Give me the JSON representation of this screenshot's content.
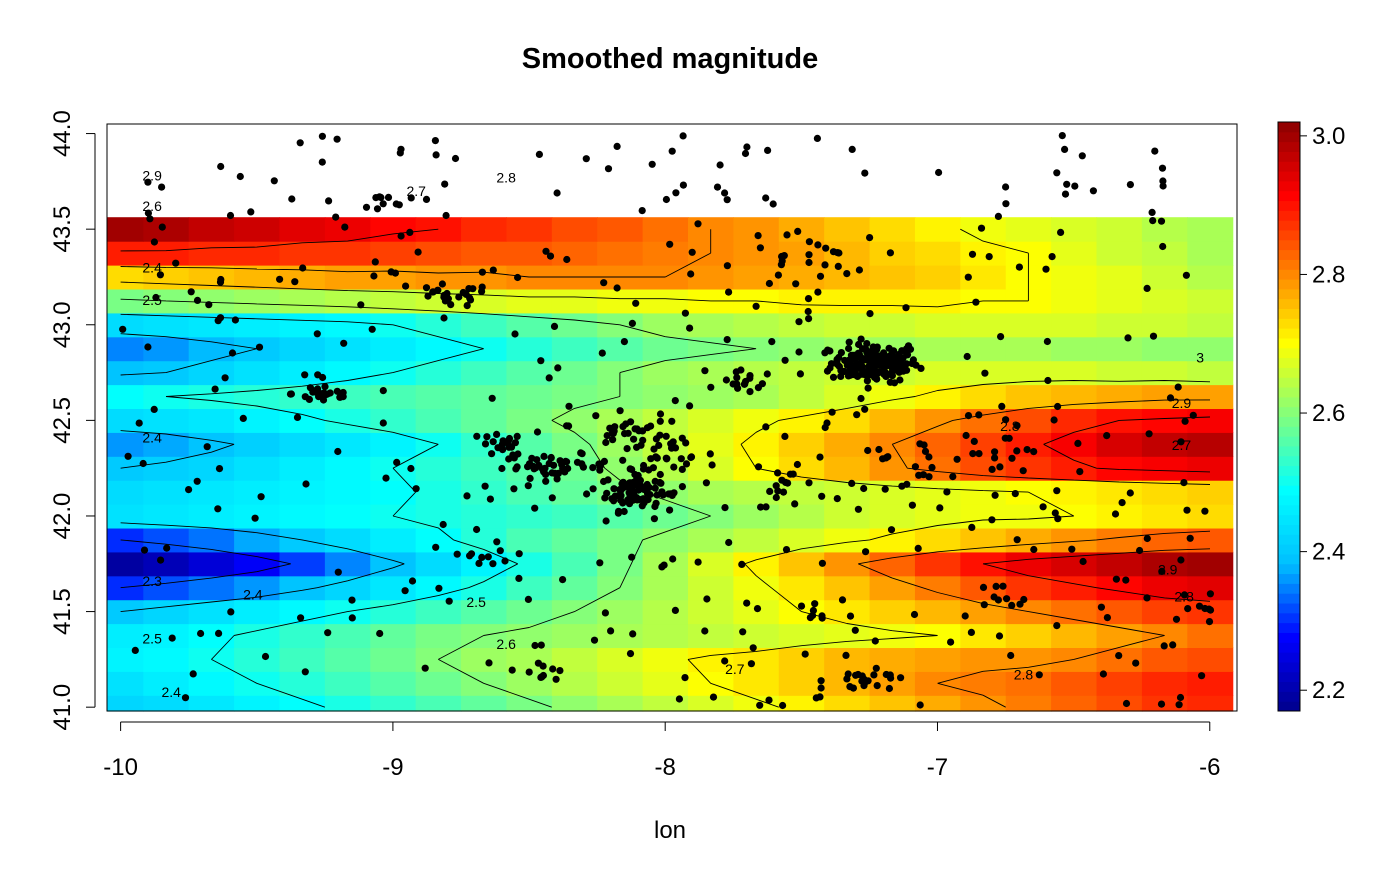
{
  "chart_data": {
    "type": "heatmap",
    "title": "Smoothed magnitude",
    "xlabel": "lon",
    "ylabel": "",
    "xlim": [
      -10.05,
      -5.9
    ],
    "ylim": [
      40.98,
      44.05
    ],
    "x_ticks": [
      "-10",
      "-9",
      "-8",
      "-7",
      "-6"
    ],
    "y_ticks": [
      "41.0",
      "41.5",
      "42.0",
      "42.5",
      "43.0",
      "43.5",
      "44.0"
    ],
    "colorbar": {
      "range": [
        2.17,
        3.02
      ],
      "ticks": [
        "2.2",
        "2.4",
        "2.6",
        "2.8",
        "3.0"
      ],
      "palette": [
        "#00008B",
        "#0000FF",
        "#00BFFF",
        "#00FFFF",
        "#7FFF7F",
        "#FFFF00",
        "#FF7F00",
        "#FF0000",
        "#8B0000"
      ]
    },
    "grid": {
      "x_start": -10.0,
      "x_step": 0.1667,
      "y_start": 41.0,
      "y_step": 0.125,
      "values": [
        [
          2.42,
          2.43,
          2.45,
          2.47,
          2.49,
          2.51,
          2.53,
          2.55,
          2.57,
          2.59,
          2.61,
          2.63,
          2.65,
          2.67,
          2.69,
          2.71,
          2.73,
          2.75,
          2.77,
          2.79,
          2.81,
          2.83,
          2.85,
          2.87,
          2.88
        ],
        [
          2.44,
          2.46,
          2.48,
          2.5,
          2.52,
          2.54,
          2.56,
          2.58,
          2.6,
          2.62,
          2.64,
          2.66,
          2.68,
          2.7,
          2.72,
          2.74,
          2.76,
          2.78,
          2.8,
          2.81,
          2.82,
          2.84,
          2.86,
          2.88,
          2.89
        ],
        [
          2.47,
          2.48,
          2.5,
          2.52,
          2.54,
          2.56,
          2.58,
          2.6,
          2.62,
          2.63,
          2.65,
          2.67,
          2.69,
          2.71,
          2.72,
          2.74,
          2.76,
          2.77,
          2.78,
          2.79,
          2.79,
          2.8,
          2.82,
          2.84,
          2.85
        ],
        [
          2.46,
          2.47,
          2.49,
          2.51,
          2.53,
          2.55,
          2.57,
          2.59,
          2.6,
          2.61,
          2.62,
          2.63,
          2.64,
          2.65,
          2.66,
          2.67,
          2.68,
          2.69,
          2.7,
          2.72,
          2.74,
          2.76,
          2.78,
          2.8,
          2.82
        ],
        [
          2.4,
          2.42,
          2.44,
          2.46,
          2.48,
          2.5,
          2.52,
          2.54,
          2.56,
          2.58,
          2.6,
          2.62,
          2.64,
          2.66,
          2.68,
          2.7,
          2.72,
          2.74,
          2.76,
          2.78,
          2.8,
          2.82,
          2.84,
          2.86,
          2.87
        ],
        [
          2.3,
          2.32,
          2.34,
          2.36,
          2.39,
          2.42,
          2.45,
          2.48,
          2.51,
          2.54,
          2.57,
          2.6,
          2.63,
          2.66,
          2.69,
          2.72,
          2.75,
          2.78,
          2.81,
          2.84,
          2.87,
          2.89,
          2.91,
          2.93,
          2.94
        ],
        [
          2.19,
          2.21,
          2.24,
          2.27,
          2.31,
          2.35,
          2.39,
          2.43,
          2.47,
          2.51,
          2.55,
          2.59,
          2.63,
          2.67,
          2.71,
          2.75,
          2.79,
          2.83,
          2.87,
          2.9,
          2.93,
          2.95,
          2.97,
          2.99,
          3.0
        ],
        [
          2.3,
          2.32,
          2.34,
          2.37,
          2.4,
          2.43,
          2.46,
          2.49,
          2.52,
          2.55,
          2.57,
          2.59,
          2.61,
          2.63,
          2.65,
          2.67,
          2.69,
          2.71,
          2.73,
          2.75,
          2.77,
          2.79,
          2.81,
          2.83,
          2.84
        ],
        [
          2.44,
          2.45,
          2.46,
          2.47,
          2.48,
          2.49,
          2.5,
          2.51,
          2.52,
          2.53,
          2.54,
          2.56,
          2.58,
          2.6,
          2.62,
          2.64,
          2.66,
          2.67,
          2.68,
          2.69,
          2.69,
          2.7,
          2.71,
          2.72,
          2.73
        ],
        [
          2.43,
          2.44,
          2.45,
          2.46,
          2.47,
          2.48,
          2.49,
          2.51,
          2.53,
          2.55,
          2.57,
          2.59,
          2.61,
          2.63,
          2.64,
          2.65,
          2.66,
          2.67,
          2.68,
          2.69,
          2.7,
          2.71,
          2.72,
          2.73,
          2.74
        ],
        [
          2.4,
          2.41,
          2.42,
          2.44,
          2.46,
          2.48,
          2.5,
          2.52,
          2.54,
          2.56,
          2.58,
          2.61,
          2.64,
          2.67,
          2.7,
          2.73,
          2.76,
          2.79,
          2.82,
          2.85,
          2.87,
          2.89,
          2.91,
          2.92,
          2.93
        ],
        [
          2.36,
          2.37,
          2.39,
          2.41,
          2.43,
          2.45,
          2.47,
          2.5,
          2.53,
          2.56,
          2.59,
          2.62,
          2.65,
          2.68,
          2.71,
          2.74,
          2.77,
          2.8,
          2.83,
          2.86,
          2.89,
          2.92,
          2.95,
          2.97,
          2.98
        ],
        [
          2.43,
          2.44,
          2.45,
          2.47,
          2.49,
          2.51,
          2.53,
          2.55,
          2.57,
          2.59,
          2.61,
          2.63,
          2.65,
          2.67,
          2.69,
          2.71,
          2.73,
          2.76,
          2.79,
          2.82,
          2.85,
          2.88,
          2.9,
          2.91,
          2.92
        ],
        [
          2.49,
          2.5,
          2.51,
          2.52,
          2.53,
          2.54,
          2.55,
          2.56,
          2.57,
          2.58,
          2.59,
          2.6,
          2.61,
          2.62,
          2.63,
          2.65,
          2.67,
          2.69,
          2.71,
          2.73,
          2.75,
          2.76,
          2.77,
          2.78,
          2.78
        ],
        [
          2.39,
          2.4,
          2.42,
          2.44,
          2.46,
          2.48,
          2.5,
          2.52,
          2.54,
          2.56,
          2.58,
          2.6,
          2.62,
          2.63,
          2.64,
          2.65,
          2.66,
          2.66,
          2.67,
          2.67,
          2.67,
          2.67,
          2.66,
          2.66,
          2.65
        ],
        [
          2.35,
          2.36,
          2.38,
          2.4,
          2.42,
          2.44,
          2.46,
          2.48,
          2.5,
          2.52,
          2.54,
          2.56,
          2.58,
          2.59,
          2.6,
          2.61,
          2.62,
          2.62,
          2.63,
          2.63,
          2.63,
          2.62,
          2.62,
          2.61,
          2.61
        ],
        [
          2.43,
          2.44,
          2.45,
          2.46,
          2.47,
          2.48,
          2.5,
          2.52,
          2.54,
          2.56,
          2.58,
          2.6,
          2.62,
          2.63,
          2.64,
          2.65,
          2.66,
          2.66,
          2.67,
          2.67,
          2.67,
          2.67,
          2.66,
          2.66,
          2.65
        ],
        [
          2.59,
          2.6,
          2.61,
          2.62,
          2.63,
          2.64,
          2.65,
          2.66,
          2.67,
          2.68,
          2.68,
          2.69,
          2.69,
          2.7,
          2.7,
          2.71,
          2.71,
          2.71,
          2.71,
          2.7,
          2.7,
          2.69,
          2.68,
          2.67,
          2.66
        ],
        [
          2.73,
          2.74,
          2.75,
          2.76,
          2.77,
          2.78,
          2.78,
          2.79,
          2.79,
          2.8,
          2.8,
          2.8,
          2.8,
          2.79,
          2.78,
          2.77,
          2.76,
          2.75,
          2.74,
          2.72,
          2.7,
          2.69,
          2.68,
          2.66,
          2.64
        ],
        [
          2.89,
          2.89,
          2.88,
          2.88,
          2.87,
          2.87,
          2.86,
          2.85,
          2.84,
          2.84,
          2.83,
          2.82,
          2.81,
          2.8,
          2.79,
          2.78,
          2.76,
          2.74,
          2.73,
          2.71,
          2.7,
          2.68,
          2.66,
          2.65,
          2.63
        ],
        [
          3.0,
          2.99,
          2.97,
          2.96,
          2.94,
          2.93,
          2.91,
          2.9,
          2.88,
          2.87,
          2.85,
          2.84,
          2.82,
          2.8,
          2.79,
          2.77,
          2.75,
          2.73,
          2.71,
          2.69,
          2.68,
          2.67,
          2.66,
          2.64,
          2.63
        ]
      ]
    },
    "contour_labels": [
      "2.9",
      "2.8",
      "2.7",
      "2.6",
      "2.4",
      "2.5",
      "2.4",
      "2.3",
      "2.4",
      "2.5",
      "2.5",
      "2.4",
      "2.6",
      "2.7",
      "2.8",
      "3",
      "2.9",
      "2.8",
      "2.7",
      "2.9",
      "2.8"
    ],
    "events": {
      "note_type": "point_clusters",
      "clusters": [
        {
          "lon": -7.23,
          "lat": 42.8,
          "spread_lon": 0.08,
          "spread_lat": 0.05,
          "n": 180
        },
        {
          "lon": -8.12,
          "lat": 42.13,
          "spread_lon": 0.05,
          "spread_lat": 0.05,
          "n": 70
        },
        {
          "lon": -8.4,
          "lat": 42.26,
          "spread_lon": 0.1,
          "spread_lat": 0.03,
          "n": 45
        },
        {
          "lon": -8.05,
          "lat": 42.3,
          "spread_lon": 0.12,
          "spread_lat": 0.1,
          "n": 55
        },
        {
          "lon": -9.25,
          "lat": 42.64,
          "spread_lon": 0.06,
          "spread_lat": 0.03,
          "n": 25
        },
        {
          "lon": -8.8,
          "lat": 43.15,
          "spread_lon": 0.08,
          "spread_lat": 0.03,
          "n": 22
        },
        {
          "lon": -8.6,
          "lat": 42.37,
          "spread_lon": 0.04,
          "spread_lat": 0.03,
          "n": 18
        },
        {
          "lon": -7.7,
          "lat": 42.7,
          "spread_lon": 0.05,
          "spread_lat": 0.03,
          "n": 16
        },
        {
          "lon": -7.25,
          "lat": 41.13,
          "spread_lon": 0.08,
          "spread_lat": 0.03,
          "n": 20
        },
        {
          "lon": -8.15,
          "lat": 42.45,
          "spread_lon": 0.04,
          "spread_lat": 0.03,
          "n": 14
        },
        {
          "lon": -8.65,
          "lat": 41.78,
          "spread_lon": 0.04,
          "spread_lat": 0.02,
          "n": 8
        },
        {
          "lon": -8.45,
          "lat": 41.2,
          "spread_lon": 0.05,
          "spread_lat": 0.03,
          "n": 10
        },
        {
          "lon": -6.0,
          "lat": 41.55,
          "spread_lon": 0.02,
          "spread_lat": 0.03,
          "n": 6
        },
        {
          "lon": -7.55,
          "lat": 42.15,
          "spread_lon": 0.06,
          "spread_lat": 0.05,
          "n": 16
        },
        {
          "lon": -7.1,
          "lat": 42.25,
          "spread_lon": 0.12,
          "spread_lat": 0.08,
          "n": 20
        },
        {
          "lon": -6.8,
          "lat": 42.3,
          "spread_lon": 0.1,
          "spread_lat": 0.1,
          "n": 18
        },
        {
          "lon": -7.5,
          "lat": 43.35,
          "spread_lon": 0.1,
          "spread_lat": 0.08,
          "n": 20
        },
        {
          "lon": -9.05,
          "lat": 43.65,
          "spread_lon": 0.05,
          "spread_lat": 0.03,
          "n": 8
        },
        {
          "lon": -7.45,
          "lat": 41.5,
          "spread_lon": 0.05,
          "spread_lat": 0.03,
          "n": 8
        },
        {
          "lon": -6.8,
          "lat": 41.55,
          "spread_lon": 0.08,
          "spread_lat": 0.05,
          "n": 10
        }
      ],
      "background": {
        "lon_range": [
          -10.0,
          -6.0
        ],
        "lat_range": [
          41.0,
          44.0
        ],
        "n": 380
      }
    }
  }
}
